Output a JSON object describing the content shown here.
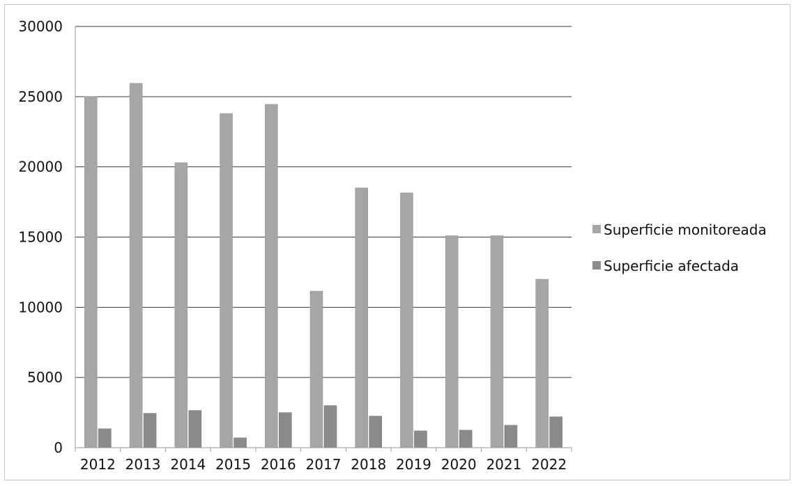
{
  "chart_data": {
    "type": "bar",
    "title": "",
    "xlabel": "",
    "ylabel": "",
    "categories": [
      "2012",
      "2013",
      "2014",
      "2015",
      "2016",
      "2017",
      "2018",
      "2019",
      "2020",
      "2021",
      "2022"
    ],
    "series": [
      {
        "name": "Superficie monitoreada",
        "color": "#a6a6a6",
        "values": [
          25000,
          25950,
          20300,
          23800,
          24450,
          11150,
          18500,
          18150,
          15100,
          15100,
          12000
        ]
      },
      {
        "name": "Superficie afectada",
        "color": "#8a8a8a",
        "values": [
          1350,
          2450,
          2650,
          700,
          2500,
          3000,
          2250,
          1200,
          1250,
          1600,
          2200
        ]
      }
    ],
    "ylim": [
      0,
      30000
    ],
    "yticks": [
      "0",
      "5000",
      "10000",
      "15000",
      "20000",
      "25000",
      "30000"
    ],
    "grid": true,
    "legend_position": "right"
  }
}
